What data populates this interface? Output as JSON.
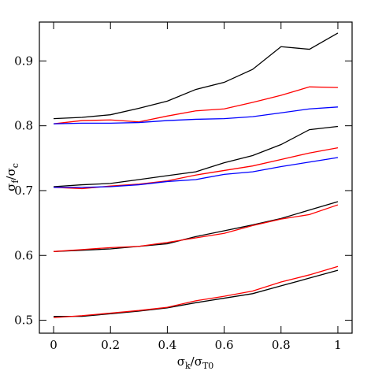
{
  "chart_data": {
    "type": "line",
    "xlabel": [
      "σ",
      "k",
      "/σ",
      "T0"
    ],
    "ylabel": [
      "σ",
      "f",
      "/σ",
      "c"
    ],
    "x": [
      0,
      0.1,
      0.2,
      0.3,
      0.4,
      0.5,
      0.6,
      0.7,
      0.8,
      0.9,
      1
    ],
    "xlim": [
      -0.05,
      1.05
    ],
    "xticks": [
      0,
      0.2,
      0.4,
      0.6,
      0.8,
      1
    ],
    "ylim": [
      0.48,
      0.96
    ],
    "yticks": [
      0.5,
      0.6,
      0.7,
      0.8,
      0.9
    ],
    "series": [
      {
        "color": "#000000",
        "values": [
          0.811,
          0.813,
          0.817,
          0.827,
          0.838,
          0.856,
          0.867,
          0.887,
          0.922,
          0.918,
          0.943
        ]
      },
      {
        "color": "#ff0000",
        "values": [
          0.803,
          0.808,
          0.809,
          0.806,
          0.815,
          0.823,
          0.826,
          0.836,
          0.847,
          0.86,
          0.859
        ]
      },
      {
        "color": "#0000ff",
        "values": [
          0.803,
          0.804,
          0.804,
          0.805,
          0.808,
          0.81,
          0.811,
          0.814,
          0.82,
          0.826,
          0.829
        ]
      },
      {
        "color": "#000000",
        "values": [
          0.706,
          0.709,
          0.711,
          0.717,
          0.723,
          0.729,
          0.743,
          0.754,
          0.771,
          0.794,
          0.799
        ]
      },
      {
        "color": "#ff0000",
        "values": [
          0.705,
          0.703,
          0.707,
          0.71,
          0.715,
          0.724,
          0.731,
          0.738,
          0.748,
          0.758,
          0.766
        ]
      },
      {
        "color": "#0000ff",
        "values": [
          0.705,
          0.705,
          0.706,
          0.709,
          0.714,
          0.717,
          0.725,
          0.729,
          0.737,
          0.744,
          0.751
        ]
      },
      {
        "color": "#000000",
        "values": [
          0.606,
          0.608,
          0.61,
          0.614,
          0.618,
          0.629,
          0.638,
          0.647,
          0.657,
          0.67,
          0.683
        ]
      },
      {
        "color": "#ff0000",
        "values": [
          0.606,
          0.609,
          0.612,
          0.614,
          0.62,
          0.627,
          0.634,
          0.646,
          0.656,
          0.663,
          0.678
        ]
      },
      {
        "color": "#000000",
        "values": [
          0.506,
          0.506,
          0.51,
          0.514,
          0.519,
          0.527,
          0.534,
          0.541,
          0.553,
          0.565,
          0.577
        ]
      },
      {
        "color": "#ff0000",
        "values": [
          0.504,
          0.507,
          0.511,
          0.515,
          0.52,
          0.53,
          0.537,
          0.545,
          0.559,
          0.57,
          0.583
        ]
      }
    ]
  }
}
